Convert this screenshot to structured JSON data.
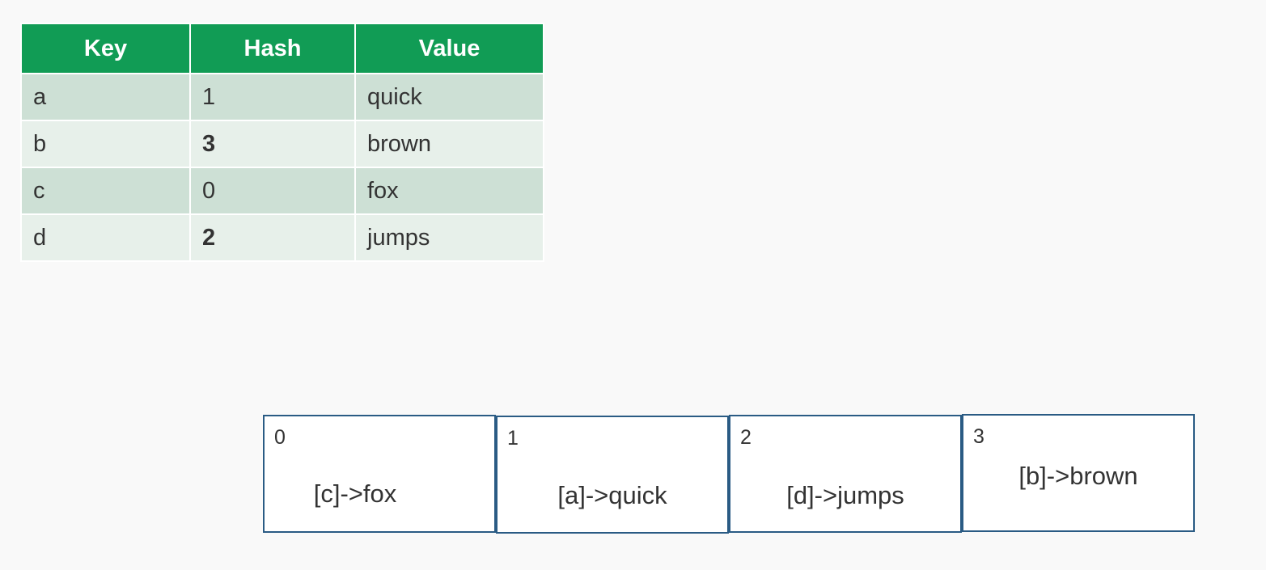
{
  "table": {
    "headers": [
      "Key",
      "Hash",
      "Value"
    ],
    "rows": [
      {
        "key": "a",
        "hash": "1",
        "value": "quick",
        "hash_bold": false
      },
      {
        "key": "b",
        "hash": "3",
        "value": "brown",
        "hash_bold": true
      },
      {
        "key": "c",
        "hash": "0",
        "value": "fox",
        "hash_bold": false
      },
      {
        "key": "d",
        "hash": "2",
        "value": "jumps",
        "hash_bold": true
      }
    ]
  },
  "buckets": [
    {
      "index": "0",
      "content": "[c]->fox"
    },
    {
      "index": "1",
      "content": "[a]->quick"
    },
    {
      "index": "2",
      "content": "[d]->jumps"
    },
    {
      "index": "3",
      "content": "[b]->brown"
    }
  ],
  "colors": {
    "header_bg": "#119c55",
    "row_odd_bg": "#cde0d5",
    "row_even_bg": "#e7f0ea",
    "bucket_border": "#2a5b84"
  }
}
